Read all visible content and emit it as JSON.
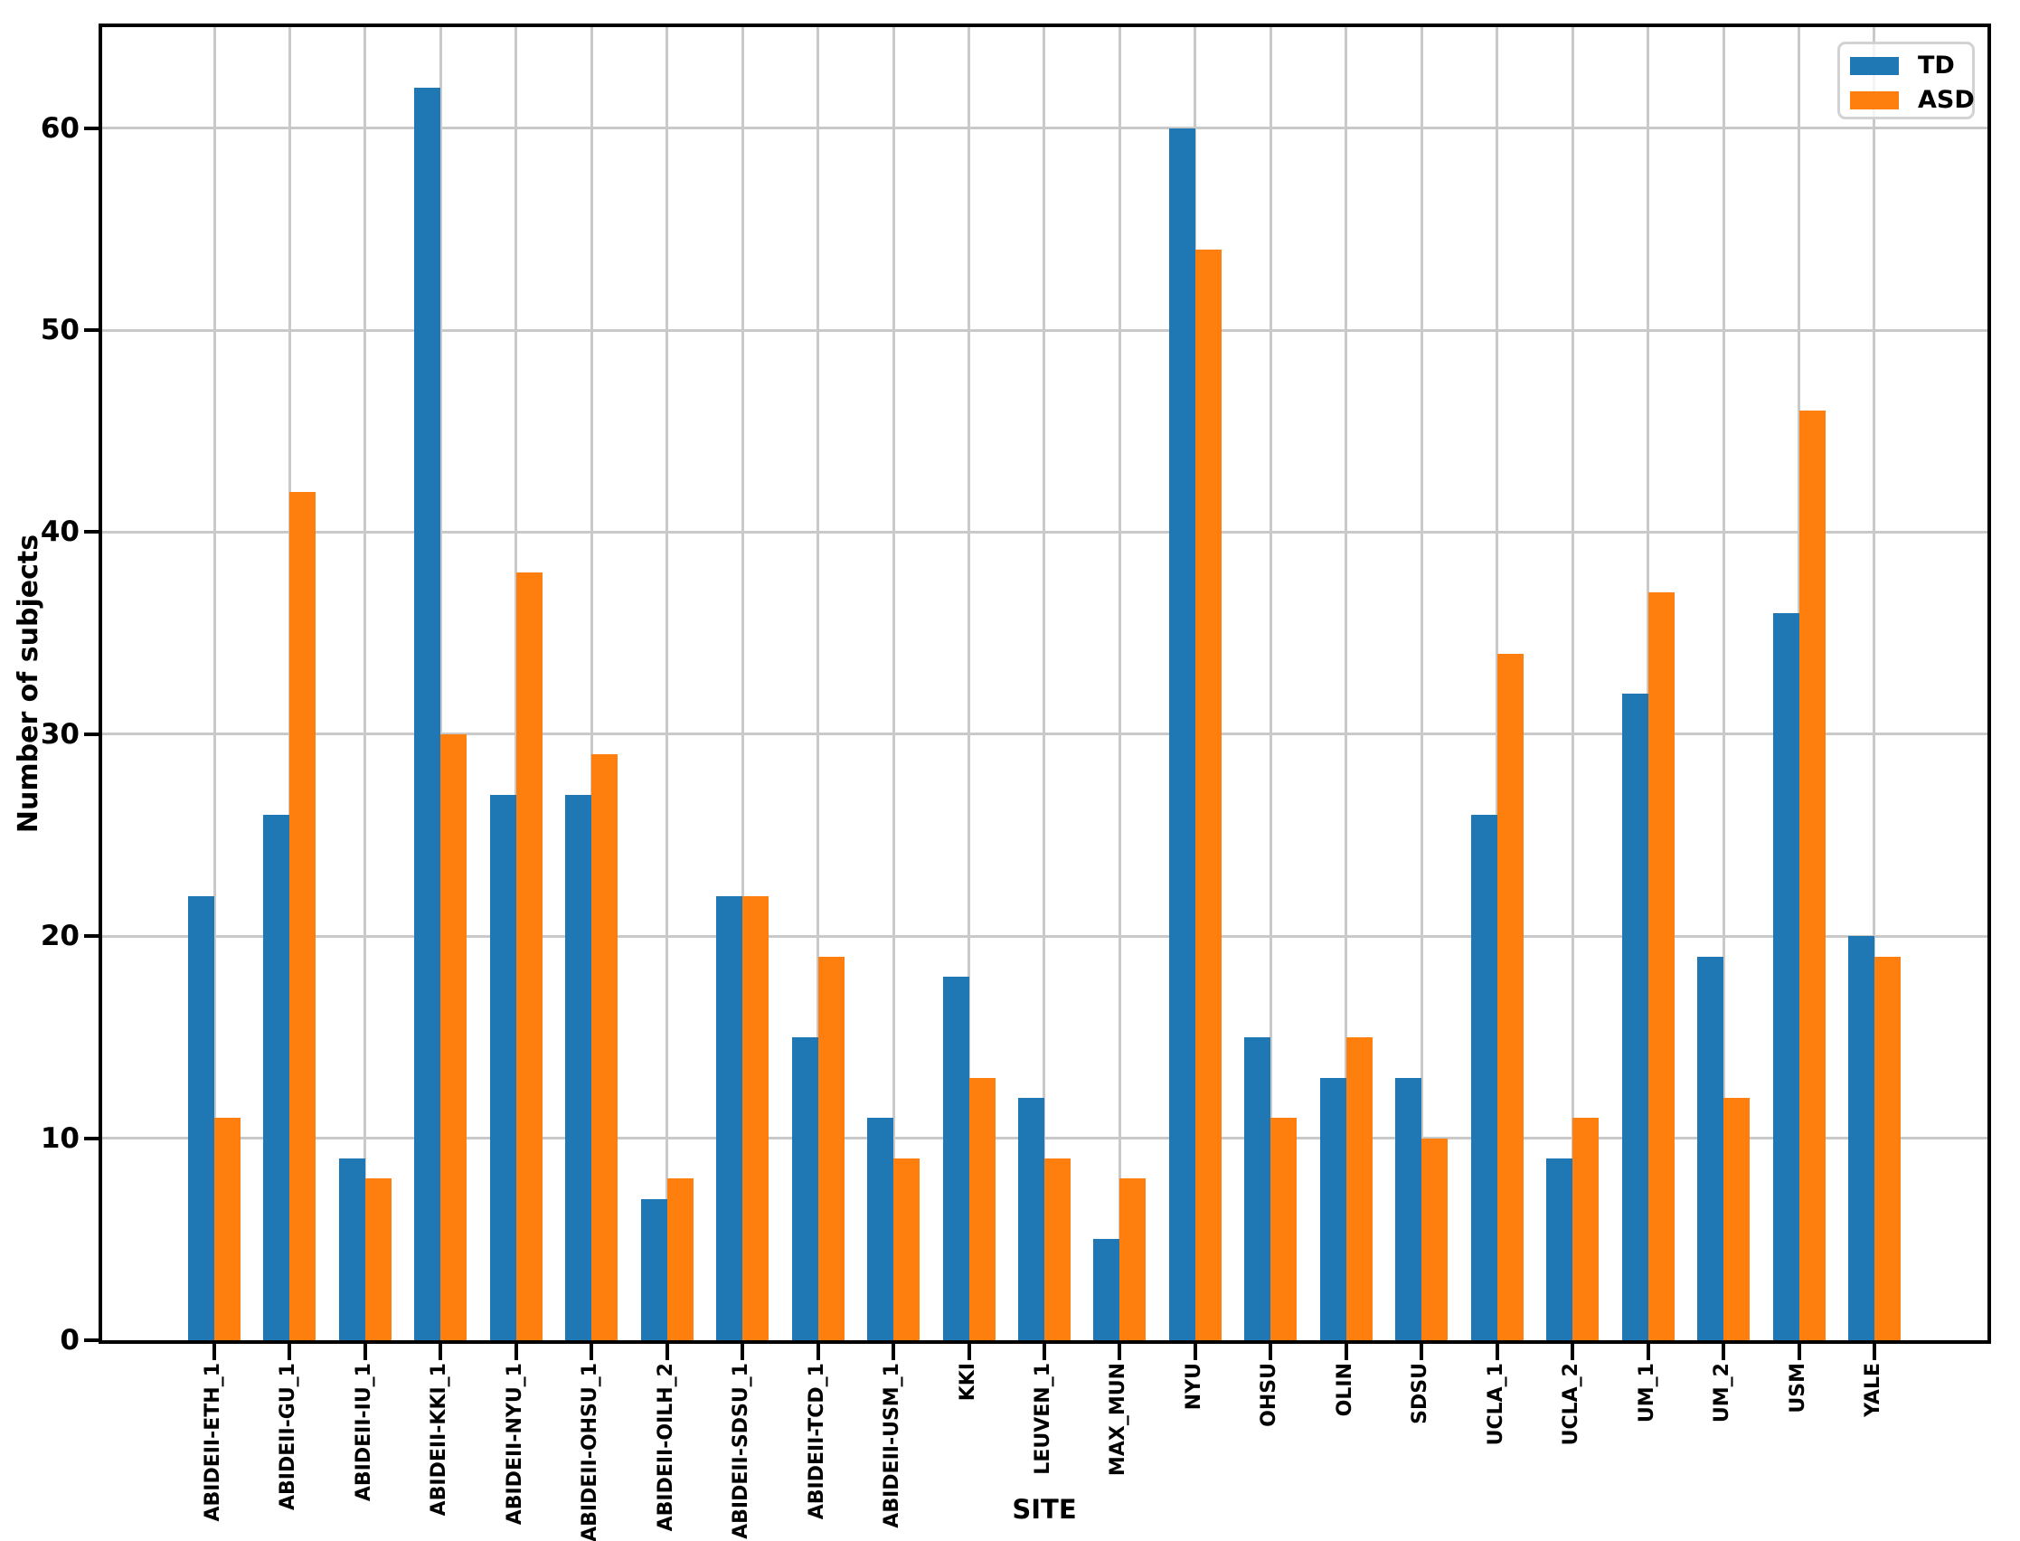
{
  "chart_data": {
    "type": "bar",
    "title": "",
    "xlabel": "SITE",
    "ylabel": "Number of subjects",
    "categories": [
      "ABIDEII-ETH_1",
      "ABIDEII-GU_1",
      "ABIDEII-IU_1",
      "ABIDEII-KKI_1",
      "ABIDEII-NYU_1",
      "ABIDEII-OHSU_1",
      "ABIDEII-OILH_2",
      "ABIDEII-SDSU_1",
      "ABIDEII-TCD_1",
      "ABIDEII-USM_1",
      "KKI",
      "LEUVEN_1",
      "MAX_MUN",
      "NYU",
      "OHSU",
      "OLIN",
      "SDSU",
      "UCLA_1",
      "UCLA_2",
      "UM_1",
      "UM_2",
      "USM",
      "YALE"
    ],
    "series": [
      {
        "name": "TD",
        "color": "#1f77b4",
        "values": [
          22,
          26,
          9,
          62,
          27,
          27,
          7,
          22,
          15,
          11,
          18,
          12,
          5,
          60,
          15,
          13,
          13,
          26,
          9,
          32,
          19,
          36,
          20
        ]
      },
      {
        "name": "ASD",
        "color": "#ff7f0e",
        "values": [
          11,
          42,
          8,
          30,
          38,
          29,
          8,
          22,
          19,
          9,
          13,
          9,
          8,
          54,
          11,
          15,
          10,
          34,
          11,
          37,
          12,
          46,
          19
        ]
      }
    ],
    "yticks": [
      0,
      10,
      20,
      30,
      40,
      50,
      60
    ],
    "ylim": [
      0,
      65
    ],
    "grid": true,
    "legend_position": "upper right",
    "grid_color": "#c9c9c9",
    "spine_color": "#000000"
  }
}
